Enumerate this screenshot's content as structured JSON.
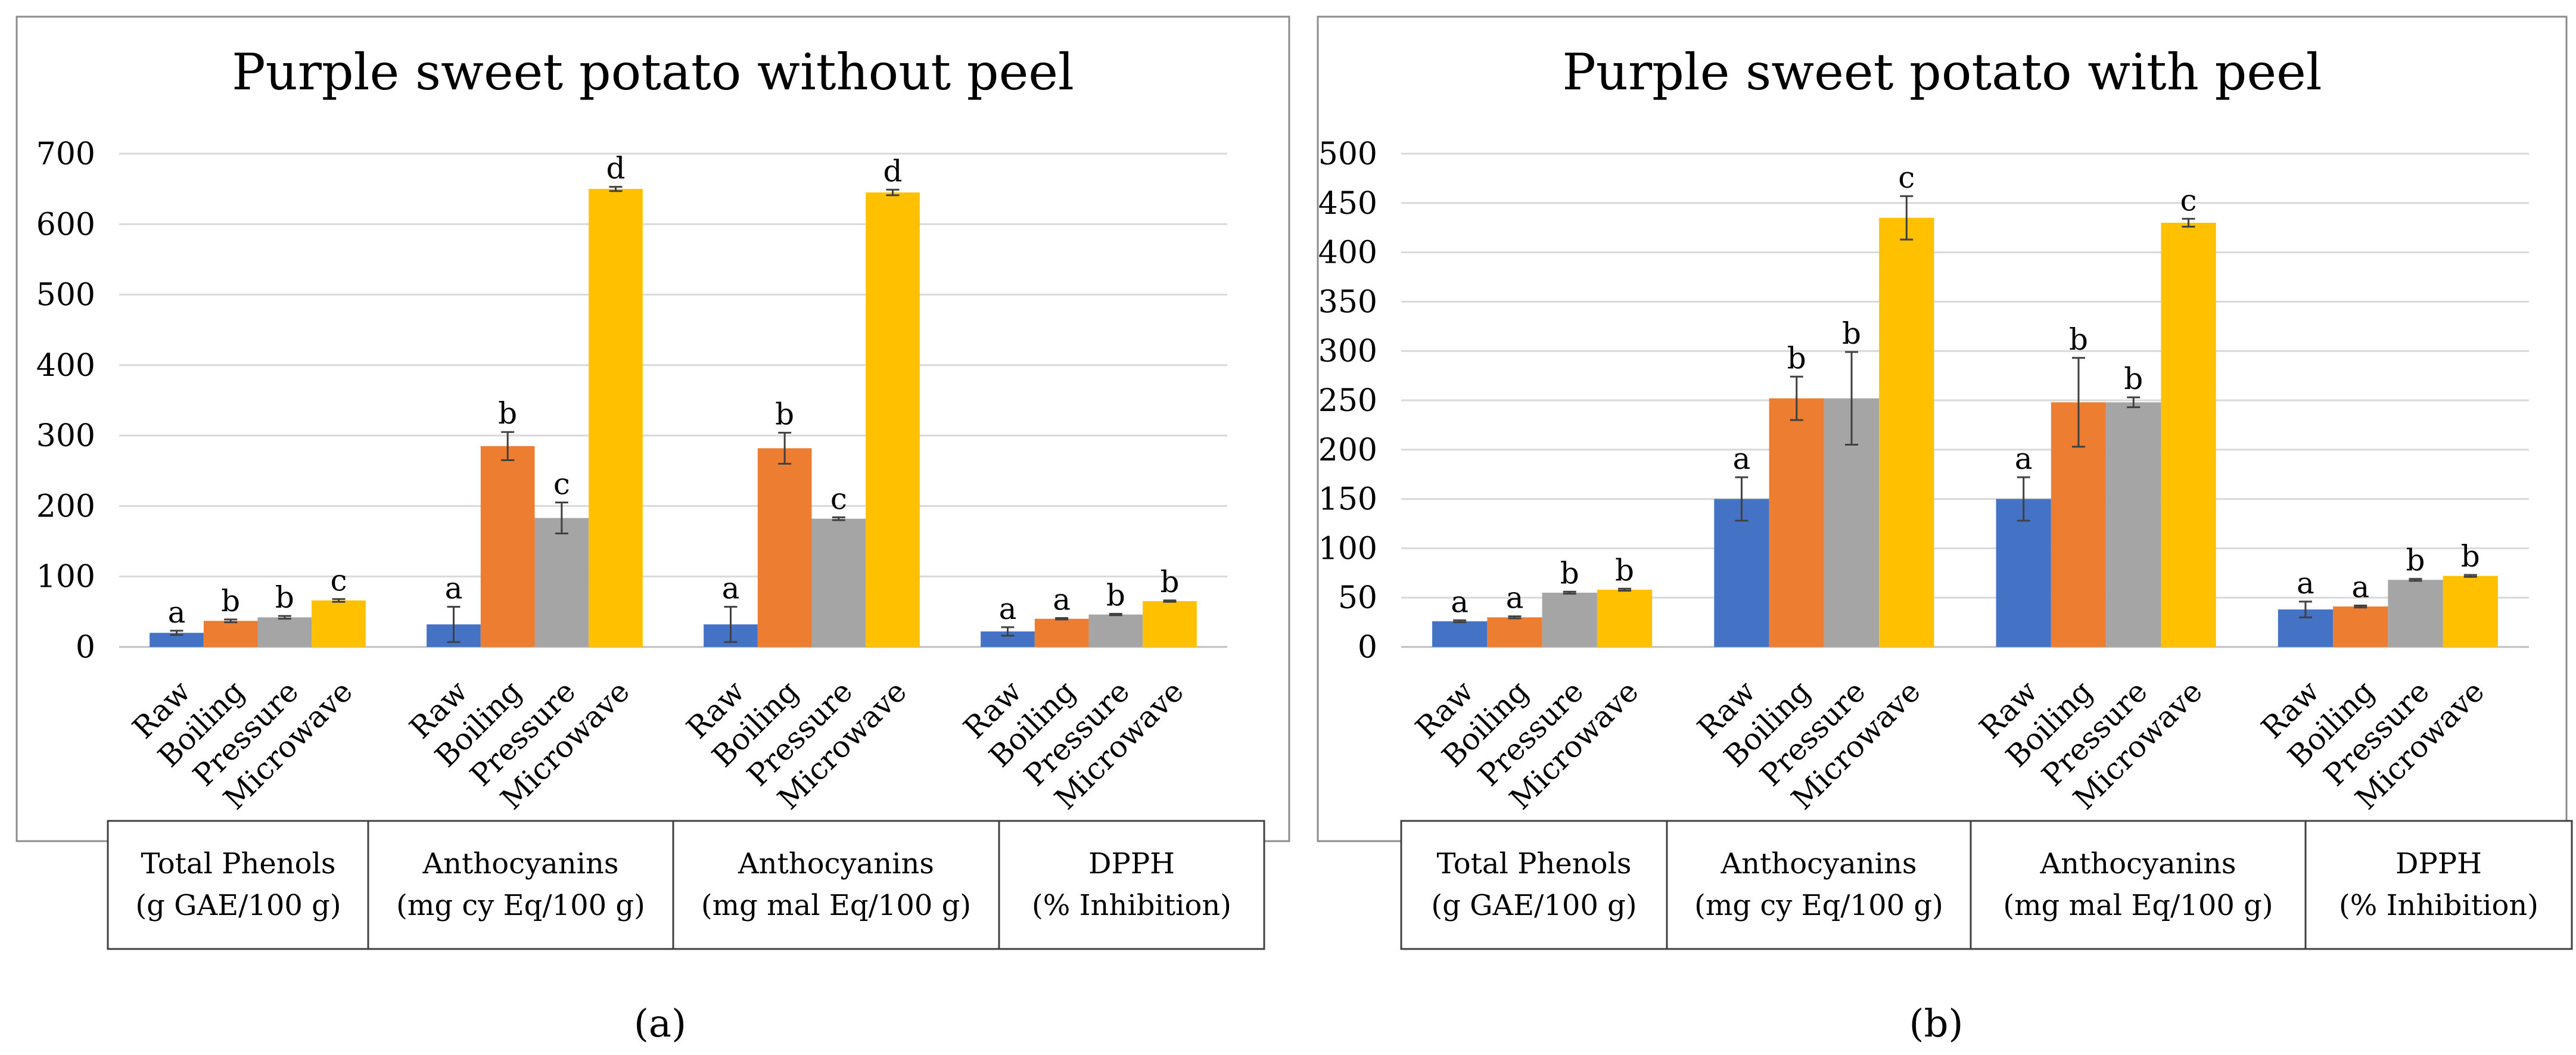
{
  "figure": {
    "panel_labels": [
      "(a)",
      "(b)"
    ]
  },
  "chart_data": [
    {
      "type": "bar",
      "title": "Purple sweet potato without peel",
      "categories": [
        "Raw",
        "Boiling",
        "Pressure",
        "Microwave"
      ],
      "colors": [
        "#4472C4",
        "#ED7D31",
        "#A5A5A5",
        "#FFC000"
      ],
      "ylim": [
        0,
        700
      ],
      "yticks": [
        0,
        100,
        200,
        300,
        400,
        500,
        600,
        700
      ],
      "grid": true,
      "groups": [
        {
          "label_line1": "Total Phenols",
          "label_line2": "(g GAE/100 g)",
          "values": [
            20,
            37,
            42,
            66
          ],
          "errors": [
            3,
            2,
            2,
            2
          ],
          "letters": [
            "a",
            "b",
            "b",
            "c"
          ]
        },
        {
          "label_line1": "Anthocyanins",
          "label_line2": "(mg cy Eq/100 g)",
          "values": [
            32,
            285,
            183,
            650
          ],
          "errors": [
            25,
            20,
            22,
            3
          ],
          "letters": [
            "a",
            "b",
            "c",
            "d"
          ]
        },
        {
          "label_line1": "Anthocyanins",
          "label_line2": "(mg mal Eq/100 g)",
          "values": [
            32,
            282,
            182,
            645
          ],
          "errors": [
            25,
            22,
            2,
            4
          ],
          "letters": [
            "a",
            "b",
            "c",
            "d"
          ]
        },
        {
          "label_line1": "DPPH",
          "label_line2": "(% Inhibition)",
          "values": [
            22,
            40,
            46,
            65
          ],
          "errors": [
            6,
            1,
            1,
            1
          ],
          "letters": [
            "a",
            "a",
            "b",
            "b"
          ]
        }
      ]
    },
    {
      "type": "bar",
      "title": "Purple sweet potato with peel",
      "categories": [
        "Raw",
        "Boiling",
        "Pressure",
        "Microwave"
      ],
      "colors": [
        "#4472C4",
        "#ED7D31",
        "#A5A5A5",
        "#FFC000"
      ],
      "ylim": [
        0,
        500
      ],
      "yticks": [
        0,
        50,
        100,
        150,
        200,
        250,
        300,
        350,
        400,
        450,
        500
      ],
      "grid": true,
      "groups": [
        {
          "label_line1": "Total Phenols",
          "label_line2": "(g GAE/100 g)",
          "values": [
            26,
            30,
            55,
            58
          ],
          "errors": [
            1,
            1,
            1,
            1
          ],
          "letters": [
            "a",
            "a",
            "b",
            "b"
          ]
        },
        {
          "label_line1": "Anthocyanins",
          "label_line2": "(mg cy Eq/100 g)",
          "values": [
            150,
            252,
            252,
            435
          ],
          "errors": [
            22,
            22,
            47,
            22
          ],
          "letters": [
            "a",
            "b",
            "b",
            "c"
          ]
        },
        {
          "label_line1": "Anthocyanins",
          "label_line2": "(mg mal Eq/100 g)",
          "values": [
            150,
            248,
            248,
            430
          ],
          "errors": [
            22,
            45,
            5,
            4
          ],
          "letters": [
            "a",
            "b",
            "b",
            "c"
          ]
        },
        {
          "label_line1": "DPPH",
          "label_line2": "(% Inhibition)",
          "values": [
            38,
            41,
            68,
            72
          ],
          "errors": [
            8,
            1,
            1,
            1
          ],
          "letters": [
            "a",
            "a",
            "b",
            "b"
          ]
        }
      ]
    }
  ]
}
